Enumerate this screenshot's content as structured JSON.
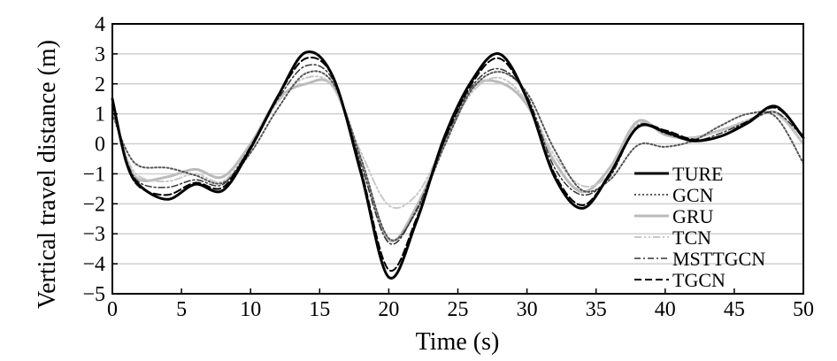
{
  "chart_data": {
    "type": "line",
    "title": "",
    "xlabel": "Time (s)",
    "ylabel": "Vertical travel distance (m)",
    "xlim": [
      0,
      50
    ],
    "ylim": [
      -5,
      4
    ],
    "xticks": [
      "0",
      "5",
      "10",
      "15",
      "20",
      "25",
      "30",
      "35",
      "40",
      "45",
      "50"
    ],
    "yticks": [
      "4",
      "3",
      "2",
      "1",
      "0",
      "−1",
      "−2",
      "−3",
      "−4",
      "−5"
    ],
    "grid": "horizontal",
    "legend": "right",
    "series": [
      {
        "name": "TURE",
        "color": "#000000",
        "style": "solid-thick",
        "points": [
          [
            0,
            1.5
          ],
          [
            1,
            -0.6
          ],
          [
            2,
            -1.4
          ],
          [
            4,
            -1.85
          ],
          [
            6,
            -1.35
          ],
          [
            8,
            -1.55
          ],
          [
            10,
            -0.15
          ],
          [
            12,
            1.6
          ],
          [
            14,
            3.05
          ],
          [
            16,
            2.2
          ],
          [
            18,
            -1.0
          ],
          [
            20,
            -4.45
          ],
          [
            22,
            -2.6
          ],
          [
            24,
            0.2
          ],
          [
            26,
            2.1
          ],
          [
            28,
            3.0
          ],
          [
            30,
            1.5
          ],
          [
            32,
            -1.1
          ],
          [
            34,
            -2.15
          ],
          [
            36,
            -1.0
          ],
          [
            38,
            0.55
          ],
          [
            40,
            0.4
          ],
          [
            42,
            0.1
          ],
          [
            44,
            0.25
          ],
          [
            46,
            0.7
          ],
          [
            48,
            1.25
          ],
          [
            50,
            0.2
          ]
        ]
      },
      {
        "name": "GCN",
        "color": "#555555",
        "style": "dotted",
        "points": [
          [
            0,
            1.0
          ],
          [
            1,
            -0.2
          ],
          [
            2,
            -0.75
          ],
          [
            4,
            -0.8
          ],
          [
            6,
            -1.05
          ],
          [
            8,
            -1.3
          ],
          [
            10,
            -0.3
          ],
          [
            12,
            1.2
          ],
          [
            14,
            2.35
          ],
          [
            16,
            2.0
          ],
          [
            18,
            -0.5
          ],
          [
            20,
            -3.15
          ],
          [
            22,
            -2.25
          ],
          [
            24,
            -0.1
          ],
          [
            26,
            1.8
          ],
          [
            28,
            2.4
          ],
          [
            30,
            1.7
          ],
          [
            32,
            -0.2
          ],
          [
            34,
            -1.55
          ],
          [
            36,
            -1.2
          ],
          [
            38,
            -0.05
          ],
          [
            40,
            -0.1
          ],
          [
            42,
            0.1
          ],
          [
            44,
            0.6
          ],
          [
            46,
            1.0
          ],
          [
            48,
            0.9
          ],
          [
            50,
            -0.65
          ]
        ]
      },
      {
        "name": "GRU",
        "color": "#bbbbbb",
        "style": "solid-thick",
        "points": [
          [
            0,
            1.3
          ],
          [
            1,
            -0.5
          ],
          [
            2,
            -1.2
          ],
          [
            4,
            -1.1
          ],
          [
            6,
            -0.85
          ],
          [
            8,
            -1.1
          ],
          [
            10,
            0.0
          ],
          [
            12,
            1.5
          ],
          [
            14,
            2.0
          ],
          [
            16,
            1.9
          ],
          [
            18,
            -0.6
          ],
          [
            20,
            -3.2
          ],
          [
            22,
            -2.1
          ],
          [
            24,
            0.0
          ],
          [
            26,
            1.85
          ],
          [
            28,
            2.05
          ],
          [
            30,
            1.3
          ],
          [
            32,
            -0.6
          ],
          [
            34,
            -1.6
          ],
          [
            36,
            -0.8
          ],
          [
            38,
            0.75
          ],
          [
            40,
            0.3
          ],
          [
            42,
            0.2
          ],
          [
            44,
            0.45
          ],
          [
            46,
            0.75
          ],
          [
            48,
            1.05
          ],
          [
            50,
            0.0
          ]
        ]
      },
      {
        "name": "TCN",
        "color": "#c8c8c8",
        "style": "dashdotdot",
        "points": [
          [
            0,
            1.2
          ],
          [
            1,
            -0.4
          ],
          [
            2,
            -1.1
          ],
          [
            4,
            -1.25
          ],
          [
            6,
            -1.0
          ],
          [
            8,
            -1.25
          ],
          [
            10,
            -0.1
          ],
          [
            12,
            1.4
          ],
          [
            14,
            2.2
          ],
          [
            16,
            1.9
          ],
          [
            18,
            -0.3
          ],
          [
            20,
            -2.05
          ],
          [
            22,
            -1.7
          ],
          [
            24,
            0.0
          ],
          [
            26,
            1.7
          ],
          [
            28,
            2.2
          ],
          [
            30,
            1.4
          ],
          [
            32,
            -0.4
          ],
          [
            34,
            -1.4
          ],
          [
            36,
            -1.0
          ],
          [
            38,
            0.65
          ],
          [
            40,
            0.35
          ],
          [
            42,
            0.2
          ],
          [
            44,
            0.45
          ],
          [
            46,
            0.8
          ],
          [
            48,
            1.0
          ],
          [
            50,
            0.0
          ]
        ]
      },
      {
        "name": "MSTTGCN",
        "color": "#333333",
        "style": "dashdot",
        "points": [
          [
            0,
            1.4
          ],
          [
            1,
            -0.5
          ],
          [
            2,
            -1.3
          ],
          [
            4,
            -1.45
          ],
          [
            6,
            -1.2
          ],
          [
            8,
            -1.35
          ],
          [
            10,
            -0.1
          ],
          [
            12,
            1.5
          ],
          [
            14,
            2.6
          ],
          [
            16,
            2.1
          ],
          [
            18,
            -0.7
          ],
          [
            20,
            -3.3
          ],
          [
            22,
            -2.2
          ],
          [
            24,
            0.05
          ],
          [
            26,
            1.9
          ],
          [
            28,
            2.5
          ],
          [
            30,
            1.6
          ],
          [
            32,
            -0.8
          ],
          [
            34,
            -1.7
          ],
          [
            36,
            -1.1
          ],
          [
            38,
            0.6
          ],
          [
            40,
            0.35
          ],
          [
            42,
            0.1
          ],
          [
            44,
            0.35
          ],
          [
            46,
            0.75
          ],
          [
            48,
            1.05
          ],
          [
            50,
            0.2
          ]
        ]
      },
      {
        "name": "TGCN",
        "color": "#000000",
        "style": "dashed",
        "points": [
          [
            0,
            1.4
          ],
          [
            1,
            -0.6
          ],
          [
            2,
            -1.45
          ],
          [
            4,
            -1.7
          ],
          [
            6,
            -1.3
          ],
          [
            8,
            -1.45
          ],
          [
            10,
            -0.1
          ],
          [
            12,
            1.6
          ],
          [
            14,
            2.85
          ],
          [
            16,
            2.2
          ],
          [
            18,
            -0.9
          ],
          [
            20,
            -4.2
          ],
          [
            22,
            -2.5
          ],
          [
            24,
            0.1
          ],
          [
            26,
            2.0
          ],
          [
            28,
            2.85
          ],
          [
            30,
            1.5
          ],
          [
            32,
            -1.0
          ],
          [
            34,
            -2.05
          ],
          [
            36,
            -1.0
          ],
          [
            38,
            0.55
          ],
          [
            40,
            0.45
          ],
          [
            42,
            0.15
          ],
          [
            44,
            0.25
          ],
          [
            46,
            0.75
          ],
          [
            48,
            1.2
          ],
          [
            50,
            0.25
          ]
        ]
      }
    ]
  }
}
